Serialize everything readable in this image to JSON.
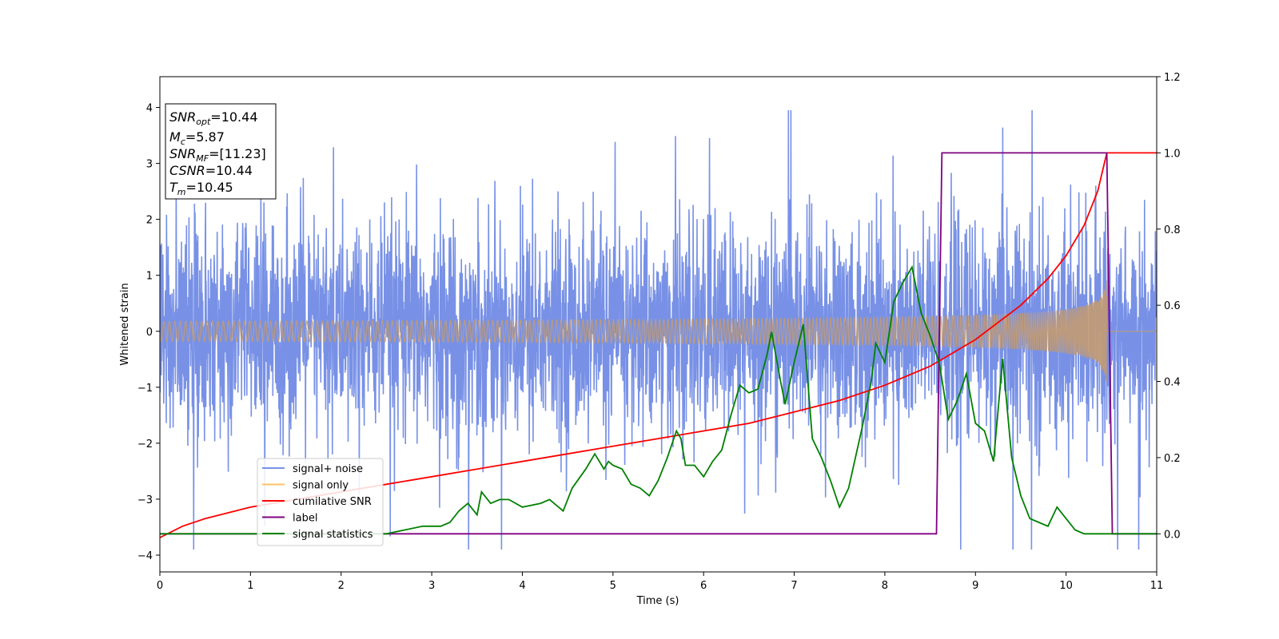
{
  "chart_data": {
    "type": "line",
    "title": "",
    "xlabel": "Time (s)",
    "ylabel": "Whitened strain",
    "xlim": [
      0,
      11
    ],
    "ylim": [
      -4.3,
      4.55
    ],
    "y2lim": [
      -0.1,
      1.2
    ],
    "x_ticks": [
      "0",
      "1",
      "2",
      "3",
      "4",
      "5",
      "6",
      "7",
      "8",
      "9",
      "10",
      "11"
    ],
    "y_ticks": [
      "4",
      "3",
      "2",
      "1",
      "0",
      "−1",
      "−2",
      "−3",
      "−4"
    ],
    "y2_ticks": [
      "1.2",
      "1.0",
      "0.8",
      "0.6",
      "0.4",
      "0.2",
      "0.0"
    ],
    "grid": false,
    "legend_position": "lower-left",
    "annotation": [
      {
        "base": "SNR",
        "sub": "opt",
        "value": "=10.44"
      },
      {
        "base": "M",
        "sub": "c",
        "value": "=5.87"
      },
      {
        "base": "SNR",
        "sub": "MF",
        "value": "=[11.23]"
      },
      {
        "base": "CSNR",
        "sub": "",
        "value": "=10.44"
      },
      {
        "base": "T",
        "sub": "m",
        "value": "=10.45"
      }
    ],
    "series": [
      {
        "name": "signal+ noise",
        "axis": "left",
        "color": "#7891e6",
        "kind": "noise",
        "sigma": 0.95,
        "range": [
          -3.9,
          3.95
        ]
      },
      {
        "name": "signal only",
        "axis": "left",
        "color": "#c39b72",
        "kind": "chirp",
        "amplitude_start": 0.05,
        "amplitude_end": 1.0,
        "t_merger": 10.45
      },
      {
        "name": "cumilative SNR",
        "axis": "right",
        "color": "#ff0000",
        "x": [
          0,
          0.25,
          0.5,
          1,
          1.5,
          2,
          2.5,
          3,
          3.5,
          4,
          4.5,
          5,
          5.5,
          6,
          6.5,
          7,
          7.5,
          8,
          8.5,
          9,
          9.5,
          9.8,
          10,
          10.2,
          10.35,
          10.45,
          11
        ],
        "y": [
          -0.01,
          0.02,
          0.04,
          0.07,
          0.09,
          0.11,
          0.13,
          0.15,
          0.17,
          0.19,
          0.21,
          0.23,
          0.25,
          0.27,
          0.29,
          0.32,
          0.35,
          0.39,
          0.44,
          0.51,
          0.6,
          0.67,
          0.73,
          0.81,
          0.9,
          1.0,
          1.0
        ]
      },
      {
        "name": "label",
        "axis": "right",
        "color": "#800080",
        "x": [
          0,
          8.57,
          8.63,
          10.45,
          10.51,
          11
        ],
        "y": [
          0,
          0,
          1,
          1,
          0,
          0
        ]
      },
      {
        "name": "signal statistics",
        "axis": "right",
        "color": "#008000",
        "x": [
          0,
          2.5,
          2.7,
          2.9,
          3.1,
          3.2,
          3.3,
          3.4,
          3.5,
          3.55,
          3.65,
          3.75,
          3.85,
          4.0,
          4.2,
          4.3,
          4.45,
          4.55,
          4.7,
          4.8,
          4.9,
          4.95,
          5.0,
          5.1,
          5.2,
          5.3,
          5.4,
          5.5,
          5.6,
          5.7,
          5.75,
          5.8,
          5.9,
          6.0,
          6.1,
          6.2,
          6.3,
          6.4,
          6.5,
          6.6,
          6.7,
          6.75,
          6.85,
          6.9,
          7.0,
          7.1,
          7.2,
          7.3,
          7.4,
          7.5,
          7.6,
          7.75,
          7.85,
          7.9,
          8.0,
          8.05,
          8.1,
          8.2,
          8.3,
          8.4,
          8.5,
          8.6,
          8.7,
          8.8,
          8.9,
          9.0,
          9.1,
          9.2,
          9.3,
          9.4,
          9.5,
          9.6,
          9.7,
          9.8,
          9.9,
          10.0,
          10.1,
          10.2,
          10.3,
          10.4,
          10.6,
          11
        ],
        "y": [
          0.0,
          0.0,
          0.01,
          0.02,
          0.02,
          0.03,
          0.06,
          0.08,
          0.05,
          0.11,
          0.08,
          0.09,
          0.09,
          0.07,
          0.08,
          0.09,
          0.06,
          0.12,
          0.17,
          0.21,
          0.17,
          0.19,
          0.18,
          0.17,
          0.13,
          0.12,
          0.1,
          0.14,
          0.2,
          0.27,
          0.25,
          0.18,
          0.18,
          0.15,
          0.19,
          0.22,
          0.31,
          0.39,
          0.37,
          0.38,
          0.47,
          0.53,
          0.4,
          0.34,
          0.45,
          0.55,
          0.25,
          0.2,
          0.14,
          0.07,
          0.12,
          0.28,
          0.4,
          0.5,
          0.45,
          0.53,
          0.61,
          0.66,
          0.7,
          0.58,
          0.52,
          0.45,
          0.3,
          0.35,
          0.42,
          0.29,
          0.27,
          0.19,
          0.46,
          0.2,
          0.1,
          0.04,
          0.03,
          0.02,
          0.07,
          0.04,
          0.01,
          0.0,
          0.0,
          0.0,
          0.0,
          0.0
        ]
      }
    ]
  }
}
